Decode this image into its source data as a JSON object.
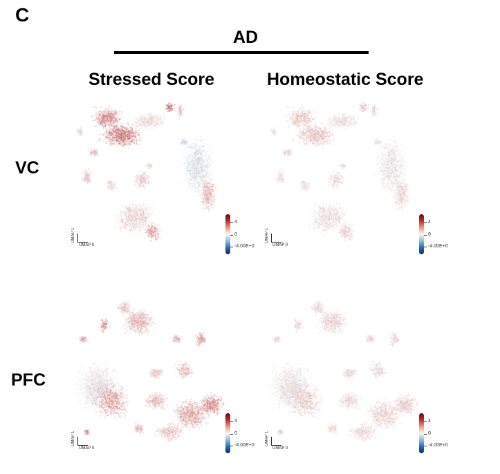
{
  "panel_letter": "C",
  "group_title": "AD",
  "columns": [
    "Stressed Score",
    "Homeostatic Score"
  ],
  "rows": [
    "VC",
    "PFC"
  ],
  "chart_data": {
    "type": "scatter",
    "description_kind": "UMAP embedding colored by score",
    "xlabel": "UMAP 0",
    "ylabel": "UMAP 1",
    "panels": [
      {
        "row": "VC",
        "column": "Stressed Score"
      },
      {
        "row": "VC",
        "column": "Homeostatic Score"
      },
      {
        "row": "PFC",
        "column": "Stressed Score"
      },
      {
        "row": "PFC",
        "column": "Homeostatic Score"
      }
    ],
    "colorbar": {
      "ticks": [
        "4",
        "0",
        "-4.00E+0"
      ],
      "range": [
        -4,
        4
      ],
      "colormap": "RdBu_r",
      "colors": {
        "high": "#8b1a1f",
        "mid": "#f7f4f2",
        "low": "#1f4f8a"
      }
    }
  }
}
